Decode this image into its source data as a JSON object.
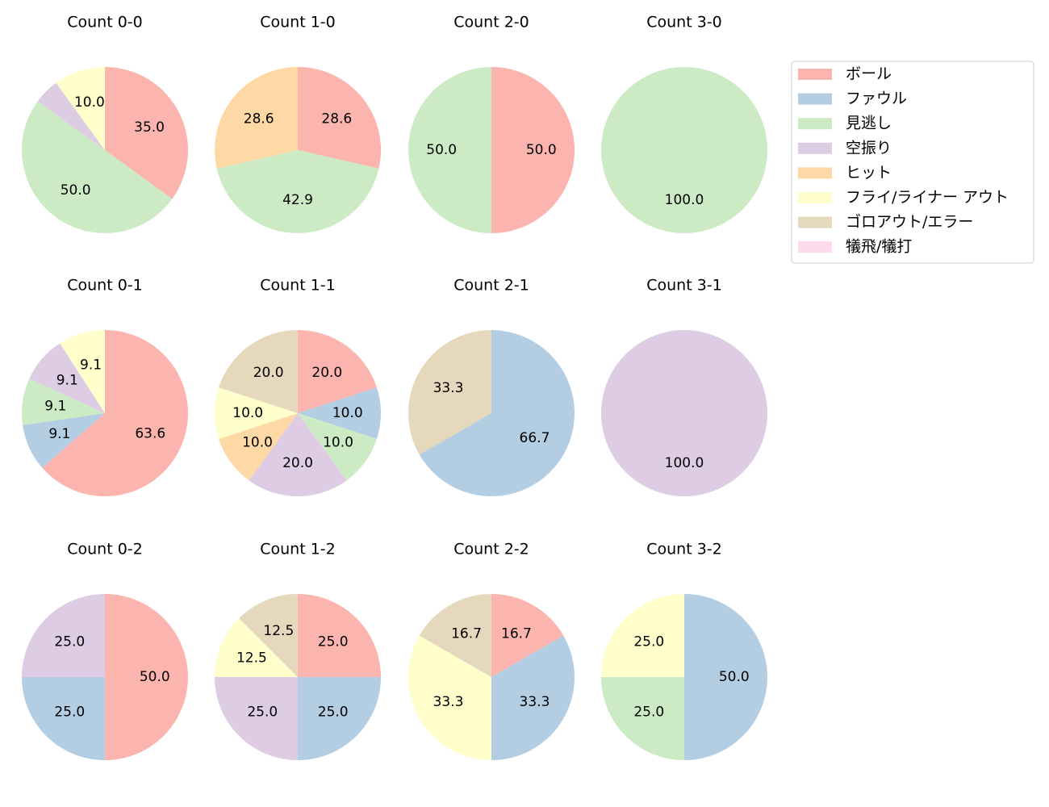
{
  "legend": {
    "labels": [
      "ボール",
      "ファウル",
      "見逃し",
      "空振り",
      "ヒット",
      "フライ/ライナー アウト",
      "ゴロアウト/エラー",
      "犠飛/犠打"
    ],
    "colors": [
      "#fbb4ae",
      "#b3cde3",
      "#ccebc5",
      "#decbe4",
      "#fed9a6",
      "#ffffcc",
      "#e5d8bd",
      "#fddaec"
    ],
    "loc": "upper right"
  },
  "chart_data": [
    {
      "type": "pie",
      "title": "Count 0-0",
      "categories": [
        "ボール",
        "見逃し",
        "空振り",
        "フライ/ライナー アウト"
      ],
      "values": [
        35,
        50,
        5,
        10
      ],
      "value_labels": [
        "35.0",
        "50.0",
        null,
        "10.0"
      ]
    },
    {
      "type": "pie",
      "title": "Count 1-0",
      "categories": [
        "ボール",
        "見逃し",
        "ヒット"
      ],
      "values": [
        28.6,
        42.9,
        28.6
      ],
      "value_labels": [
        "28.6",
        "42.9",
        "28.6"
      ]
    },
    {
      "type": "pie",
      "title": "Count 2-0",
      "categories": [
        "ボール",
        "見逃し"
      ],
      "values": [
        50,
        50
      ],
      "value_labels": [
        "50.0",
        "50.0"
      ]
    },
    {
      "type": "pie",
      "title": "Count 3-0",
      "categories": [
        "見逃し"
      ],
      "values": [
        100
      ],
      "value_labels": [
        "100.0"
      ]
    },
    {
      "type": "pie",
      "title": "Count 0-1",
      "categories": [
        "ボール",
        "ファウル",
        "見逃し",
        "空振り",
        "フライ/ライナー アウト"
      ],
      "values": [
        63.6,
        9.1,
        9.1,
        9.1,
        9.1
      ],
      "value_labels": [
        "63.6",
        "9.1",
        "9.1",
        "9.1",
        "9.1"
      ]
    },
    {
      "type": "pie",
      "title": "Count 1-1",
      "categories": [
        "ボール",
        "ファウル",
        "見逃し",
        "空振り",
        "ヒット",
        "フライ/ライナー アウト",
        "ゴロアウト/エラー"
      ],
      "values": [
        20,
        10,
        10,
        20,
        10,
        10,
        20
      ],
      "value_labels": [
        "20.0",
        "10.0",
        "10.0",
        "20.0",
        "10.0",
        "10.0",
        "20.0"
      ]
    },
    {
      "type": "pie",
      "title": "Count 2-1",
      "categories": [
        "ファウル",
        "ゴロアウト/エラー"
      ],
      "values": [
        66.7,
        33.3
      ],
      "value_labels": [
        "66.7",
        "33.3"
      ]
    },
    {
      "type": "pie",
      "title": "Count 3-1",
      "categories": [
        "空振り"
      ],
      "values": [
        100
      ],
      "value_labels": [
        "100.0"
      ]
    },
    {
      "type": "pie",
      "title": "Count 0-2",
      "categories": [
        "ボール",
        "ファウル",
        "空振り"
      ],
      "values": [
        50,
        25,
        25
      ],
      "value_labels": [
        "50.0",
        "25.0",
        "25.0"
      ]
    },
    {
      "type": "pie",
      "title": "Count 1-2",
      "categories": [
        "ボール",
        "ファウル",
        "空振り",
        "フライ/ライナー アウト",
        "ゴロアウト/エラー"
      ],
      "values": [
        25,
        25,
        25,
        12.5,
        12.5
      ],
      "value_labels": [
        "25.0",
        "25.0",
        "25.0",
        "12.5",
        "12.5"
      ]
    },
    {
      "type": "pie",
      "title": "Count 2-2",
      "categories": [
        "ボール",
        "ファウル",
        "フライ/ライナー アウト",
        "ゴロアウト/エラー"
      ],
      "values": [
        16.7,
        33.3,
        33.3,
        16.7
      ],
      "value_labels": [
        "16.7",
        "33.3",
        "33.3",
        "16.7"
      ]
    },
    {
      "type": "pie",
      "title": "Count 3-2",
      "categories": [
        "ファウル",
        "見逃し",
        "フライ/ライナー アウト"
      ],
      "values": [
        50,
        25,
        25
      ],
      "value_labels": [
        "50.0",
        "25.0",
        "25.0"
      ]
    }
  ]
}
